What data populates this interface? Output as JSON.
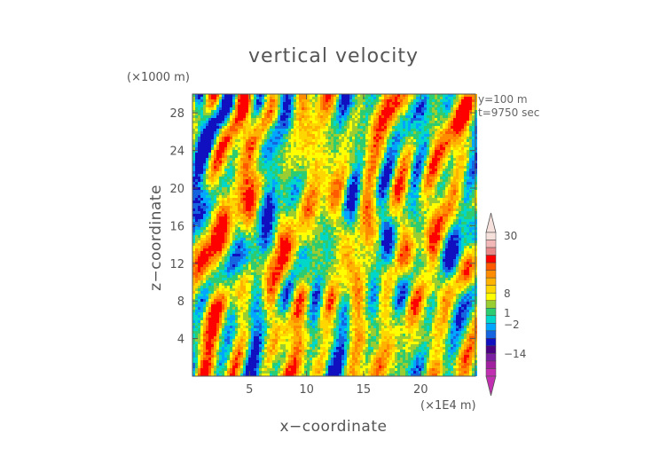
{
  "chart_data": {
    "type": "heatmap",
    "title": "vertical velocity",
    "xlabel": "x−coordinate",
    "ylabel": "z−coordinate",
    "x_unit": "(×1E4 m)",
    "y_unit": "(×1000 m)",
    "xlim": [
      0,
      24.8
    ],
    "ylim": [
      0,
      30
    ],
    "x_ticks": [
      5,
      10,
      15,
      20
    ],
    "y_ticks": [
      4,
      8,
      12,
      16,
      20,
      24,
      28
    ],
    "info_lines": [
      "y=100  m",
      "t=9750  sec"
    ],
    "colorbar": {
      "labels": [
        "30",
        "8",
        "1",
        "−2",
        "−14"
      ],
      "colors": [
        "#f5e0dc",
        "#f2b8b8",
        "#e88a8a",
        "#ff0000",
        "#ff5a00",
        "#ff8c00",
        "#ffb300",
        "#ffd700",
        "#ffff00",
        "#9acd32",
        "#2ecc71",
        "#00d7c8",
        "#00a6ff",
        "#1565e0",
        "#1010c0",
        "#4b0082",
        "#7a1fa2",
        "#a020a0",
        "#c030b0"
      ]
    }
  }
}
